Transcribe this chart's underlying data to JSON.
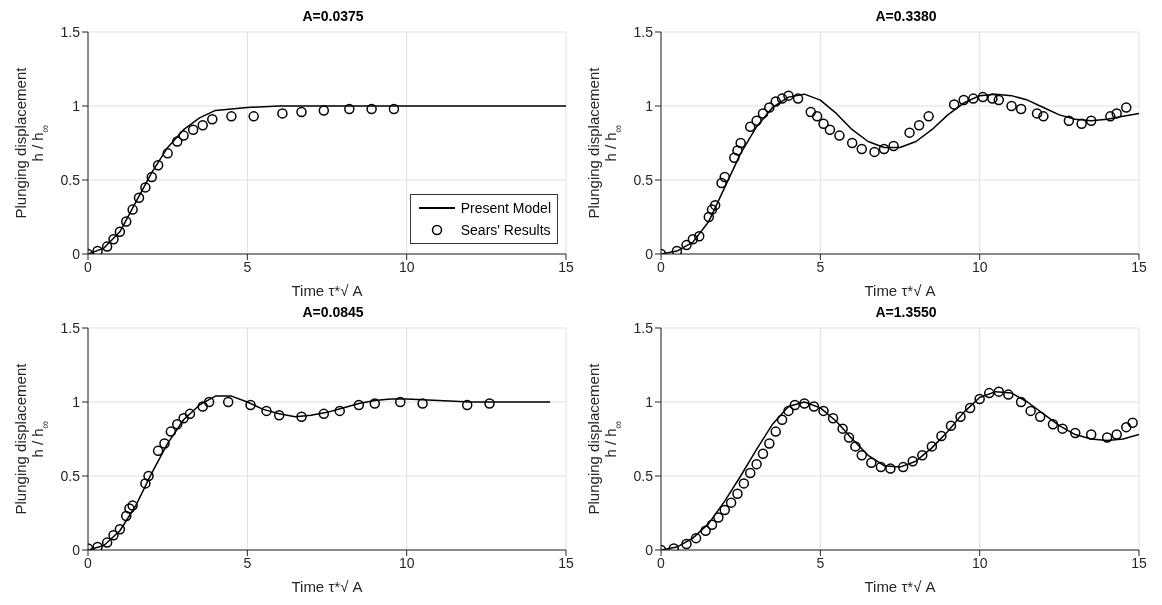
{
  "chart_data": [
    {
      "type": "line",
      "title": "A=0.0375",
      "xlabel": "Time τ*√ A",
      "ylabel": "Plunging displacement\nh / h$_{∞}$",
      "xlim": [
        0,
        15
      ],
      "xticks": [
        0,
        5,
        10,
        15
      ],
      "ylim": [
        0,
        1.5
      ],
      "yticks": [
        0,
        0.5,
        1,
        1.5
      ],
      "grid": true,
      "legend": "bottom right",
      "series": [
        {
          "name": "Present Model",
          "color": "#000000",
          "line_style": "solid",
          "x": [
            0,
            0.5,
            1,
            1.5,
            2,
            2.5,
            3,
            3.5,
            4,
            5,
            6,
            8,
            10,
            15
          ],
          "values": [
            0,
            0.04,
            0.15,
            0.35,
            0.55,
            0.72,
            0.84,
            0.92,
            0.97,
            0.99,
            1,
            1,
            1,
            1
          ]
        },
        {
          "name": "Sears' Results",
          "type": "scatter",
          "color": "#000000",
          "marker": "circle",
          "x": [
            0,
            0.3,
            0.6,
            0.8,
            1.0,
            1.2,
            1.4,
            1.6,
            1.8,
            2.0,
            2.2,
            2.5,
            2.8,
            3.0,
            3.3,
            3.6,
            3.9,
            4.5,
            5.2,
            6.1,
            6.7,
            7.4,
            8.2,
            8.9,
            9.6
          ],
          "values": [
            0,
            0.02,
            0.05,
            0.1,
            0.15,
            0.22,
            0.3,
            0.38,
            0.45,
            0.52,
            0.6,
            0.68,
            0.76,
            0.8,
            0.84,
            0.87,
            0.91,
            0.93,
            0.93,
            0.95,
            0.96,
            0.97,
            0.98,
            0.98,
            0.98
          ]
        }
      ]
    },
    {
      "type": "line",
      "title": "A=0.3380",
      "xlabel": "Time τ*√ A",
      "ylabel": "Plunging displacement\nh / h$_{∞}$",
      "xlim": [
        0,
        15
      ],
      "xticks": [
        0,
        5,
        10,
        15
      ],
      "ylim": [
        0,
        1.5
      ],
      "yticks": [
        0,
        0.5,
        1,
        1.5
      ],
      "grid": true,
      "series": [
        {
          "color": "#000000",
          "line_style": "solid",
          "x": [
            0,
            0.5,
            1,
            1.5,
            2,
            2.5,
            3,
            3.5,
            4,
            4.5,
            5,
            5.5,
            6,
            6.5,
            7,
            7.5,
            8,
            8.5,
            9,
            9.5,
            10,
            10.5,
            11,
            11.5,
            12,
            12.5,
            13,
            13.5,
            14,
            14.5,
            15
          ],
          "values": [
            0,
            0.02,
            0.08,
            0.22,
            0.45,
            0.68,
            0.86,
            0.99,
            1.06,
            1.08,
            1.04,
            0.95,
            0.84,
            0.76,
            0.72,
            0.72,
            0.76,
            0.84,
            0.94,
            1.02,
            1.07,
            1.08,
            1.07,
            1.04,
            0.99,
            0.94,
            0.91,
            0.9,
            0.91,
            0.93,
            0.95
          ]
        },
        {
          "type": "scatter",
          "color": "#000000",
          "marker": "circle",
          "x": [
            0,
            0.5,
            0.8,
            1.0,
            1.2,
            1.5,
            1.6,
            1.7,
            1.9,
            2.0,
            2.3,
            2.4,
            2.5,
            2.8,
            3.0,
            3.2,
            3.4,
            3.6,
            3.8,
            4.0,
            4.3,
            4.7,
            4.9,
            5.1,
            5.3,
            5.6,
            6.0,
            6.3,
            6.7,
            7.0,
            7.3,
            7.8,
            8.1,
            8.4,
            9.2,
            9.5,
            9.8,
            10.1,
            10.4,
            10.6,
            11.0,
            11.3,
            11.8,
            12.0,
            12.8,
            13.2,
            13.5,
            14.1,
            14.3,
            14.6
          ],
          "values": [
            0,
            0.02,
            0.06,
            0.1,
            0.12,
            0.25,
            0.3,
            0.33,
            0.48,
            0.52,
            0.65,
            0.7,
            0.75,
            0.86,
            0.9,
            0.95,
            0.99,
            1.03,
            1.05,
            1.07,
            1.05,
            0.96,
            0.93,
            0.88,
            0.84,
            0.8,
            0.75,
            0.71,
            0.69,
            0.71,
            0.73,
            0.82,
            0.87,
            0.93,
            1.01,
            1.04,
            1.05,
            1.06,
            1.05,
            1.04,
            1.0,
            0.98,
            0.95,
            0.93,
            0.9,
            0.88,
            0.9,
            0.93,
            0.95,
            0.99
          ]
        }
      ]
    },
    {
      "type": "line",
      "title": "A=0.0845",
      "xlabel": "Time τ*√ A",
      "ylabel": "Plunging displacement\nh / h$_{∞}$",
      "xlim": [
        0,
        15
      ],
      "xticks": [
        0,
        5,
        10,
        15
      ],
      "ylim": [
        0,
        1.5
      ],
      "yticks": [
        0,
        0.5,
        1,
        1.5
      ],
      "grid": true,
      "series": [
        {
          "color": "#000000",
          "line_style": "solid",
          "x": [
            0,
            0.5,
            1,
            1.5,
            2,
            2.5,
            3,
            3.5,
            4,
            4.5,
            5,
            5.5,
            6,
            6.5,
            7,
            7.5,
            8,
            8.5,
            9,
            9.5,
            10,
            11,
            12,
            13,
            14.5
          ],
          "values": [
            0,
            0.03,
            0.13,
            0.3,
            0.52,
            0.72,
            0.88,
            0.98,
            1.04,
            1.04,
            1.0,
            0.95,
            0.92,
            0.9,
            0.91,
            0.93,
            0.96,
            0.99,
            1.01,
            1.02,
            1.02,
            1.01,
            1.0,
            1.0,
            1.0
          ]
        },
        {
          "type": "scatter",
          "color": "#000000",
          "marker": "circle",
          "x": [
            0,
            0.3,
            0.6,
            0.8,
            1.0,
            1.2,
            1.3,
            1.4,
            1.8,
            1.9,
            2.2,
            2.4,
            2.6,
            2.8,
            3.0,
            3.2,
            3.6,
            3.8,
            4.4,
            5.1,
            5.6,
            6.0,
            6.7,
            7.4,
            7.9,
            8.5,
            9.0,
            9.8,
            10.5,
            11.9,
            12.6
          ],
          "values": [
            0.01,
            0.02,
            0.05,
            0.1,
            0.14,
            0.23,
            0.28,
            0.3,
            0.45,
            0.5,
            0.67,
            0.72,
            0.8,
            0.85,
            0.89,
            0.92,
            0.97,
            1.0,
            1.0,
            0.98,
            0.94,
            0.91,
            0.9,
            0.92,
            0.94,
            0.98,
            0.99,
            1.0,
            0.99,
            0.98,
            0.99
          ]
        }
      ]
    },
    {
      "type": "line",
      "title": "A=1.3550",
      "xlabel": "Time τ*√ A",
      "ylabel": "Plunging displacement\nh / h$_{∞}$",
      "xlim": [
        0,
        15
      ],
      "xticks": [
        0,
        5,
        10,
        15
      ],
      "ylim": [
        0,
        1.5
      ],
      "yticks": [
        0,
        0.5,
        1,
        1.5
      ],
      "grid": true,
      "series": [
        {
          "color": "#000000",
          "line_style": "solid",
          "x": [
            0,
            0.5,
            1,
            1.5,
            2,
            2.5,
            3,
            3.5,
            4,
            4.5,
            5,
            5.5,
            6,
            6.5,
            7,
            7.5,
            8,
            8.5,
            9,
            9.5,
            10,
            10.5,
            11,
            11.5,
            12,
            12.5,
            13,
            13.5,
            14,
            14.5,
            15
          ],
          "values": [
            0,
            0.02,
            0.08,
            0.18,
            0.33,
            0.5,
            0.68,
            0.85,
            0.97,
            1.0,
            0.96,
            0.87,
            0.75,
            0.64,
            0.57,
            0.56,
            0.6,
            0.69,
            0.8,
            0.93,
            1.03,
            1.07,
            1.06,
            1.0,
            0.92,
            0.84,
            0.78,
            0.75,
            0.74,
            0.75,
            0.78
          ]
        },
        {
          "type": "scatter",
          "color": "#000000",
          "marker": "circle",
          "x": [
            0,
            0.4,
            0.8,
            1.1,
            1.4,
            1.6,
            1.8,
            2.0,
            2.2,
            2.4,
            2.6,
            2.8,
            3.0,
            3.2,
            3.4,
            3.6,
            3.8,
            4.0,
            4.2,
            4.5,
            4.8,
            5.1,
            5.4,
            5.7,
            5.9,
            6.1,
            6.3,
            6.6,
            6.9,
            7.2,
            7.6,
            7.9,
            8.2,
            8.5,
            8.8,
            9.1,
            9.4,
            9.7,
            10.0,
            10.3,
            10.6,
            10.9,
            11.3,
            11.6,
            11.9,
            12.3,
            12.6,
            13.0,
            13.5,
            14.0,
            14.3,
            14.6,
            14.8
          ],
          "values": [
            0,
            0.01,
            0.04,
            0.08,
            0.13,
            0.17,
            0.22,
            0.27,
            0.32,
            0.38,
            0.45,
            0.52,
            0.58,
            0.65,
            0.72,
            0.8,
            0.88,
            0.94,
            0.98,
            0.99,
            0.97,
            0.94,
            0.89,
            0.82,
            0.76,
            0.7,
            0.64,
            0.59,
            0.56,
            0.55,
            0.56,
            0.6,
            0.64,
            0.7,
            0.77,
            0.84,
            0.9,
            0.96,
            1.02,
            1.06,
            1.07,
            1.05,
            1.0,
            0.94,
            0.9,
            0.85,
            0.82,
            0.79,
            0.78,
            0.76,
            0.78,
            0.83,
            0.86
          ]
        }
      ]
    }
  ]
}
